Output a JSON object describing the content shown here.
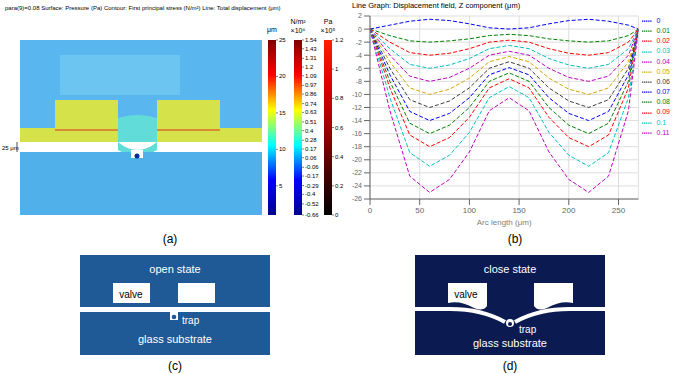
{
  "chart_data": {
    "type": "line",
    "title": "Line Graph: Displacement field, Z component (μm)",
    "x_label": "Arc length (μm)",
    "x": [
      0,
      20,
      40,
      60,
      80,
      100,
      120,
      140,
      160,
      180,
      200,
      220,
      240,
      260,
      270
    ],
    "xlim": [
      0,
      270
    ],
    "xticks": [
      0,
      50,
      100,
      150,
      200,
      250
    ],
    "ylim": [
      -26,
      2
    ],
    "yticks": [
      2,
      0,
      -2,
      -4,
      -6,
      -8,
      -10,
      -12,
      -14,
      -16,
      -18,
      -20,
      -22,
      -24,
      -26
    ],
    "grid": true,
    "legend": "right",
    "line_style": "dashed",
    "series": [
      {
        "name": "0",
        "color": "#0000ff",
        "values": [
          0,
          0.6,
          1.2,
          1.5,
          1.3,
          0.8,
          0.2,
          0,
          0.2,
          0.8,
          1.3,
          1.5,
          1.2,
          0.6,
          0
        ]
      },
      {
        "name": "0.01",
        "color": "#008000",
        "values": [
          0,
          -1,
          -1.8,
          -2,
          -1.8,
          -1.5,
          -1,
          -0.8,
          -1,
          -1.5,
          -1.8,
          -2,
          -1.8,
          -1,
          0
        ]
      },
      {
        "name": "0.02",
        "color": "#ff0000",
        "values": [
          0,
          -2,
          -3.6,
          -4,
          -3.7,
          -3,
          -2,
          -1.7,
          -2,
          -3,
          -3.7,
          -4,
          -3.6,
          -2,
          0
        ]
      },
      {
        "name": "0.03",
        "color": "#00bfbf",
        "values": [
          0,
          -3,
          -5.4,
          -6,
          -5.5,
          -4.5,
          -3,
          -2.5,
          -3,
          -4.5,
          -5.5,
          -6,
          -5.4,
          -3,
          0
        ]
      },
      {
        "name": "0.04",
        "color": "#bf00bf",
        "values": [
          0,
          -4,
          -7.2,
          -8,
          -7.4,
          -6,
          -4,
          -3.4,
          -4,
          -6,
          -7.4,
          -8,
          -7.2,
          -4,
          0
        ]
      },
      {
        "name": "0.05",
        "color": "#d4a800",
        "values": [
          0,
          -5,
          -9,
          -10,
          -9.2,
          -7.5,
          -5,
          -4.2,
          -5,
          -7.5,
          -9.2,
          -10,
          -9,
          -5,
          0
        ]
      },
      {
        "name": "0.06",
        "color": "#404040",
        "values": [
          0,
          -6,
          -10.8,
          -12,
          -11,
          -9,
          -6,
          -5,
          -6,
          -9,
          -11,
          -12,
          -10.8,
          -6,
          0
        ]
      },
      {
        "name": "0.07",
        "color": "#0000ff",
        "values": [
          0,
          -7,
          -12.6,
          -14,
          -12.9,
          -10.5,
          -7,
          -5.9,
          -7,
          -10.5,
          -12.9,
          -14,
          -12.6,
          -7,
          0
        ]
      },
      {
        "name": "0.08",
        "color": "#008000",
        "values": [
          0,
          -8,
          -14.4,
          -16,
          -14.7,
          -12,
          -8,
          -6.7,
          -8,
          -12,
          -14.7,
          -16,
          -14.4,
          -8,
          0
        ]
      },
      {
        "name": "0.09",
        "color": "#ff0000",
        "values": [
          0,
          -9,
          -16.2,
          -18,
          -16.6,
          -13.5,
          -9,
          -7.6,
          -9,
          -13.5,
          -16.6,
          -18,
          -16.2,
          -9,
          0
        ]
      },
      {
        "name": "0.1",
        "color": "#00bfbf",
        "values": [
          0,
          -10.5,
          -18.9,
          -21,
          -19.3,
          -15.8,
          -10.5,
          -8.8,
          -10.5,
          -15.8,
          -19.3,
          -21,
          -18.9,
          -10.5,
          0
        ]
      },
      {
        "name": "0.11",
        "color": "#bf00bf",
        "values": [
          0,
          -12.5,
          -22.5,
          -25,
          -23,
          -18.8,
          -12.5,
          -10.5,
          -12.5,
          -18.8,
          -23,
          -25,
          -22.5,
          -12.5,
          0
        ]
      }
    ]
  },
  "panel_a": {
    "label": "(a)",
    "title": "para(9)=0.08  Surface: Pressure (Pa)  Contour: First principal stress (N/m²)  Line: Total displacement (μm)",
    "scale_label": "25 μm",
    "colorbars": [
      {
        "unit": "μm",
        "range": [
          1,
          25
        ],
        "ticks": [
          5,
          10,
          15,
          20,
          25
        ]
      },
      {
        "unit": "N/m²",
        "multiplier": "×10⁶",
        "range": [
          -0.66,
          1.54
        ],
        "ticks": [
          1.54,
          1.43,
          1.31,
          1.2,
          1.09,
          0.97,
          0.86,
          0.74,
          0.63,
          0.51,
          0.4,
          0.28,
          0.17,
          0.06,
          -0.06,
          -0.17,
          -0.29,
          -0.4,
          -0.52,
          -0.66
        ]
      },
      {
        "unit": "Pa",
        "multiplier": "×10⁵",
        "range": [
          0,
          1.2
        ],
        "ticks": [
          1.2,
          1,
          0.8,
          0.6,
          0.4,
          0.2,
          0
        ]
      }
    ]
  },
  "panel_b": {
    "label": "(b)"
  },
  "panel_c": {
    "label": "(c)",
    "state": "open state",
    "valve": "valve",
    "trap": "trap",
    "substrate": "glass substrate"
  },
  "panel_d": {
    "label": "(d)",
    "state": "close state",
    "valve": "valve",
    "trap": "trap",
    "substrate": "glass substrate"
  }
}
